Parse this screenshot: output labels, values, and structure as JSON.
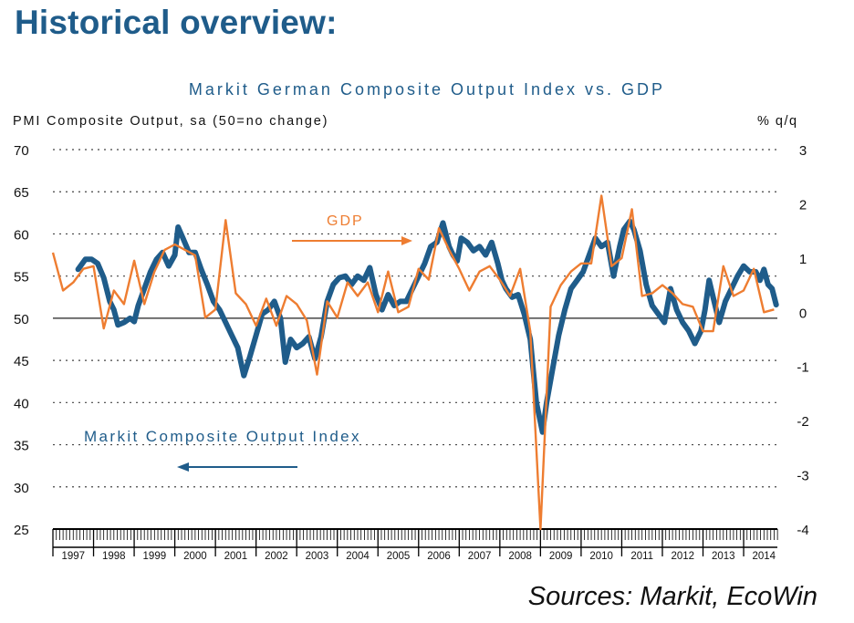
{
  "page": {
    "title": "Historical overview:",
    "source": "Sources: Markit, EcoWin"
  },
  "colors": {
    "pmi": "#1f5c8a",
    "gdp": "#ee7d31",
    "axis": "#111111",
    "grid": "#444444"
  },
  "chart_data": {
    "type": "line",
    "title": "Markit German Composite Output Index vs. GDP",
    "ylabel_left": "PMI Composite Output, sa (50=no change)",
    "ylabel_right": "% q/q",
    "ylim_left": [
      25,
      70
    ],
    "ylim_right": [
      -4,
      3
    ],
    "yticks_left": [
      "70",
      "65",
      "60",
      "55",
      "50",
      "45",
      "40",
      "35",
      "30",
      "25"
    ],
    "yticks_right": [
      "3",
      "2",
      "1",
      "0",
      "-1",
      "-2",
      "-3",
      "-4"
    ],
    "years": [
      "1997",
      "1998",
      "1999",
      "2000",
      "2001",
      "2002",
      "2003",
      "2004",
      "2005",
      "2006",
      "2007",
      "2008",
      "2009",
      "2010",
      "2011",
      "2012",
      "2013",
      "2014"
    ],
    "x_range": [
      1997.0,
      2014.83
    ],
    "grid": "dotted horizontal",
    "annotations": [
      {
        "text": "GDP",
        "series": "gdp"
      },
      {
        "text": "Markit Composite Output Index",
        "series": "pmi"
      }
    ],
    "series": [
      {
        "name": "Markit Composite Output Index",
        "axis": "left",
        "points": [
          [
            1997.62,
            55.8
          ],
          [
            1997.8,
            57.0
          ],
          [
            1997.95,
            57.0
          ],
          [
            1998.1,
            56.5
          ],
          [
            1998.25,
            54.8
          ],
          [
            1998.4,
            52.0
          ],
          [
            1998.5,
            51.0
          ],
          [
            1998.6,
            49.2
          ],
          [
            1998.75,
            49.5
          ],
          [
            1998.9,
            50.0
          ],
          [
            1999.0,
            49.6
          ],
          [
            1999.1,
            51.5
          ],
          [
            1999.25,
            53.5
          ],
          [
            1999.4,
            55.5
          ],
          [
            1999.55,
            57.0
          ],
          [
            1999.7,
            57.8
          ],
          [
            1999.85,
            56.2
          ],
          [
            2000.0,
            57.5
          ],
          [
            2000.08,
            60.8
          ],
          [
            2000.2,
            59.5
          ],
          [
            2000.35,
            57.8
          ],
          [
            2000.5,
            57.8
          ],
          [
            2000.65,
            55.8
          ],
          [
            2000.8,
            54.0
          ],
          [
            2000.95,
            52.0
          ],
          [
            2001.1,
            51.0
          ],
          [
            2001.25,
            49.5
          ],
          [
            2001.4,
            48.0
          ],
          [
            2001.55,
            46.5
          ],
          [
            2001.7,
            43.2
          ],
          [
            2001.85,
            45.5
          ],
          [
            2002.0,
            48.0
          ],
          [
            2002.15,
            50.5
          ],
          [
            2002.3,
            51.0
          ],
          [
            2002.45,
            52.0
          ],
          [
            2002.6,
            50.0
          ],
          [
            2002.72,
            44.8
          ],
          [
            2002.85,
            47.5
          ],
          [
            2003.0,
            46.5
          ],
          [
            2003.15,
            47.0
          ],
          [
            2003.3,
            47.8
          ],
          [
            2003.45,
            45.2
          ],
          [
            2003.6,
            47.8
          ],
          [
            2003.75,
            52.0
          ],
          [
            2003.9,
            54.0
          ],
          [
            2004.05,
            54.8
          ],
          [
            2004.2,
            55.0
          ],
          [
            2004.35,
            54.0
          ],
          [
            2004.5,
            55.0
          ],
          [
            2004.65,
            54.5
          ],
          [
            2004.8,
            56.0
          ],
          [
            2004.95,
            52.8
          ],
          [
            2005.1,
            51.0
          ],
          [
            2005.25,
            52.8
          ],
          [
            2005.4,
            51.5
          ],
          [
            2005.55,
            52.0
          ],
          [
            2005.7,
            52.0
          ],
          [
            2005.85,
            53.5
          ],
          [
            2006.0,
            55.0
          ],
          [
            2006.15,
            56.5
          ],
          [
            2006.3,
            58.5
          ],
          [
            2006.45,
            59.0
          ],
          [
            2006.6,
            61.3
          ],
          [
            2006.75,
            58.5
          ],
          [
            2006.85,
            57.5
          ],
          [
            2006.95,
            56.8
          ],
          [
            2007.05,
            59.5
          ],
          [
            2007.2,
            59.0
          ],
          [
            2007.35,
            58.0
          ],
          [
            2007.5,
            58.5
          ],
          [
            2007.65,
            57.5
          ],
          [
            2007.8,
            59.0
          ],
          [
            2007.95,
            56.5
          ],
          [
            2008.05,
            54.5
          ],
          [
            2008.15,
            53.5
          ],
          [
            2008.3,
            52.5
          ],
          [
            2008.45,
            52.8
          ],
          [
            2008.6,
            50.5
          ],
          [
            2008.75,
            47.5
          ],
          [
            2008.9,
            40.0
          ],
          [
            2009.05,
            36.5
          ],
          [
            2009.15,
            40.0
          ],
          [
            2009.3,
            44.0
          ],
          [
            2009.45,
            48.0
          ],
          [
            2009.6,
            51.0
          ],
          [
            2009.75,
            53.5
          ],
          [
            2009.9,
            54.5
          ],
          [
            2010.05,
            55.5
          ],
          [
            2010.2,
            57.5
          ],
          [
            2010.35,
            59.5
          ],
          [
            2010.5,
            58.5
          ],
          [
            2010.65,
            59.0
          ],
          [
            2010.8,
            55.0
          ],
          [
            2010.95,
            58.5
          ],
          [
            2011.05,
            60.5
          ],
          [
            2011.2,
            61.5
          ],
          [
            2011.3,
            60.5
          ],
          [
            2011.45,
            58.0
          ],
          [
            2011.6,
            54.0
          ],
          [
            2011.75,
            51.5
          ],
          [
            2011.9,
            50.5
          ],
          [
            2012.05,
            49.5
          ],
          [
            2012.2,
            53.5
          ],
          [
            2012.35,
            51.0
          ],
          [
            2012.5,
            49.5
          ],
          [
            2012.65,
            48.5
          ],
          [
            2012.8,
            47.0
          ],
          [
            2012.95,
            48.5
          ],
          [
            2013.05,
            51.0
          ],
          [
            2013.15,
            54.5
          ],
          [
            2013.25,
            52.5
          ],
          [
            2013.4,
            49.5
          ],
          [
            2013.55,
            52.0
          ],
          [
            2013.7,
            53.5
          ],
          [
            2013.85,
            55.0
          ],
          [
            2014.0,
            56.2
          ],
          [
            2014.15,
            55.5
          ],
          [
            2014.3,
            55.5
          ],
          [
            2014.4,
            54.5
          ],
          [
            2014.5,
            55.8
          ],
          [
            2014.6,
            54.0
          ],
          [
            2014.7,
            53.5
          ],
          [
            2014.8,
            51.6
          ]
        ]
      },
      {
        "name": "GDP",
        "axis": "right",
        "points": [
          [
            1997.0,
            1.1
          ],
          [
            1997.25,
            0.4
          ],
          [
            1997.5,
            0.55
          ],
          [
            1997.75,
            0.8
          ],
          [
            1998.0,
            0.85
          ],
          [
            1998.25,
            -0.3
          ],
          [
            1998.5,
            0.4
          ],
          [
            1998.75,
            0.15
          ],
          [
            1999.0,
            0.95
          ],
          [
            1999.25,
            0.15
          ],
          [
            1999.5,
            0.75
          ],
          [
            1999.75,
            1.15
          ],
          [
            2000.0,
            1.25
          ],
          [
            2000.25,
            1.15
          ],
          [
            2000.5,
            1.05
          ],
          [
            2000.75,
            -0.1
          ],
          [
            2001.0,
            0.05
          ],
          [
            2001.25,
            1.7
          ],
          [
            2001.5,
            0.35
          ],
          [
            2001.75,
            0.15
          ],
          [
            2002.0,
            -0.25
          ],
          [
            2002.25,
            0.25
          ],
          [
            2002.5,
            -0.25
          ],
          [
            2002.75,
            0.3
          ],
          [
            2003.0,
            0.15
          ],
          [
            2003.25,
            -0.15
          ],
          [
            2003.5,
            -1.15
          ],
          [
            2003.75,
            0.2
          ],
          [
            2004.0,
            -0.1
          ],
          [
            2004.25,
            0.55
          ],
          [
            2004.5,
            0.3
          ],
          [
            2004.75,
            0.55
          ],
          [
            2005.0,
            0.0
          ],
          [
            2005.25,
            0.75
          ],
          [
            2005.5,
            0.0
          ],
          [
            2005.75,
            0.1
          ],
          [
            2006.0,
            0.8
          ],
          [
            2006.25,
            0.6
          ],
          [
            2006.5,
            1.55
          ],
          [
            2006.75,
            1.15
          ],
          [
            2007.0,
            0.8
          ],
          [
            2007.25,
            0.4
          ],
          [
            2007.5,
            0.75
          ],
          [
            2007.75,
            0.85
          ],
          [
            2008.0,
            0.6
          ],
          [
            2008.25,
            0.3
          ],
          [
            2008.5,
            0.8
          ],
          [
            2008.75,
            -0.35
          ],
          [
            2009.0,
            -4.0
          ],
          [
            2009.25,
            0.1
          ],
          [
            2009.5,
            0.5
          ],
          [
            2009.75,
            0.75
          ],
          [
            2010.0,
            0.9
          ],
          [
            2010.25,
            0.9
          ],
          [
            2010.5,
            2.15
          ],
          [
            2010.75,
            0.85
          ],
          [
            2011.0,
            1.0
          ],
          [
            2011.25,
            1.9
          ],
          [
            2011.5,
            0.3
          ],
          [
            2011.75,
            0.35
          ],
          [
            2012.0,
            0.5
          ],
          [
            2012.25,
            0.35
          ],
          [
            2012.5,
            0.15
          ],
          [
            2012.75,
            0.1
          ],
          [
            2013.0,
            -0.35
          ],
          [
            2013.25,
            -0.35
          ],
          [
            2013.5,
            0.85
          ],
          [
            2013.75,
            0.3
          ],
          [
            2014.0,
            0.4
          ],
          [
            2014.25,
            0.8
          ],
          [
            2014.5,
            0.0
          ],
          [
            2014.75,
            0.05
          ]
        ]
      }
    ]
  }
}
